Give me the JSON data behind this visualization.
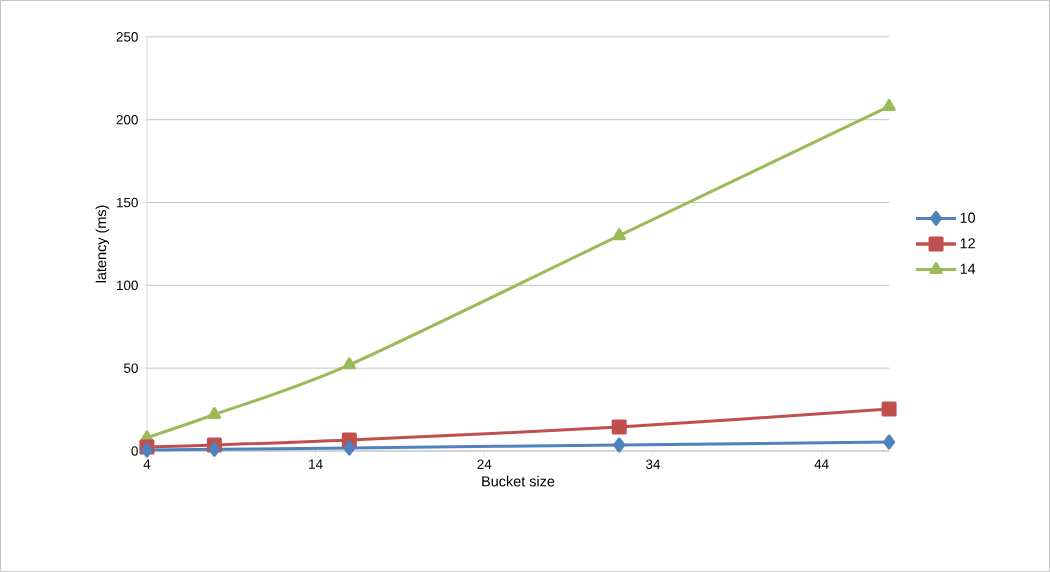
{
  "chart_data": {
    "type": "line",
    "xlabel": "Bucket size",
    "ylabel": "latency (ms)",
    "x": [
      4,
      8,
      16,
      32,
      48
    ],
    "series": [
      {
        "name": "10",
        "color": "#4f81bd",
        "marker": "diamond",
        "values": [
          0.6,
          1,
          1.8,
          3.6,
          5.4
        ]
      },
      {
        "name": "12",
        "color": "#c0504d",
        "marker": "square",
        "values": [
          2.4,
          3.6,
          6.6,
          14.5,
          25.4
        ]
      },
      {
        "name": "14",
        "color": "#9bbb59",
        "marker": "triangle",
        "values": [
          8,
          22,
          52,
          130,
          208
        ]
      }
    ],
    "xlim": [
      4,
      48
    ],
    "xticks": [
      4,
      14,
      24,
      34,
      44
    ],
    "ylim": [
      0,
      250
    ],
    "yticks": [
      0,
      50,
      100,
      150,
      200,
      250
    ],
    "grid": "y",
    "legend": "right"
  }
}
